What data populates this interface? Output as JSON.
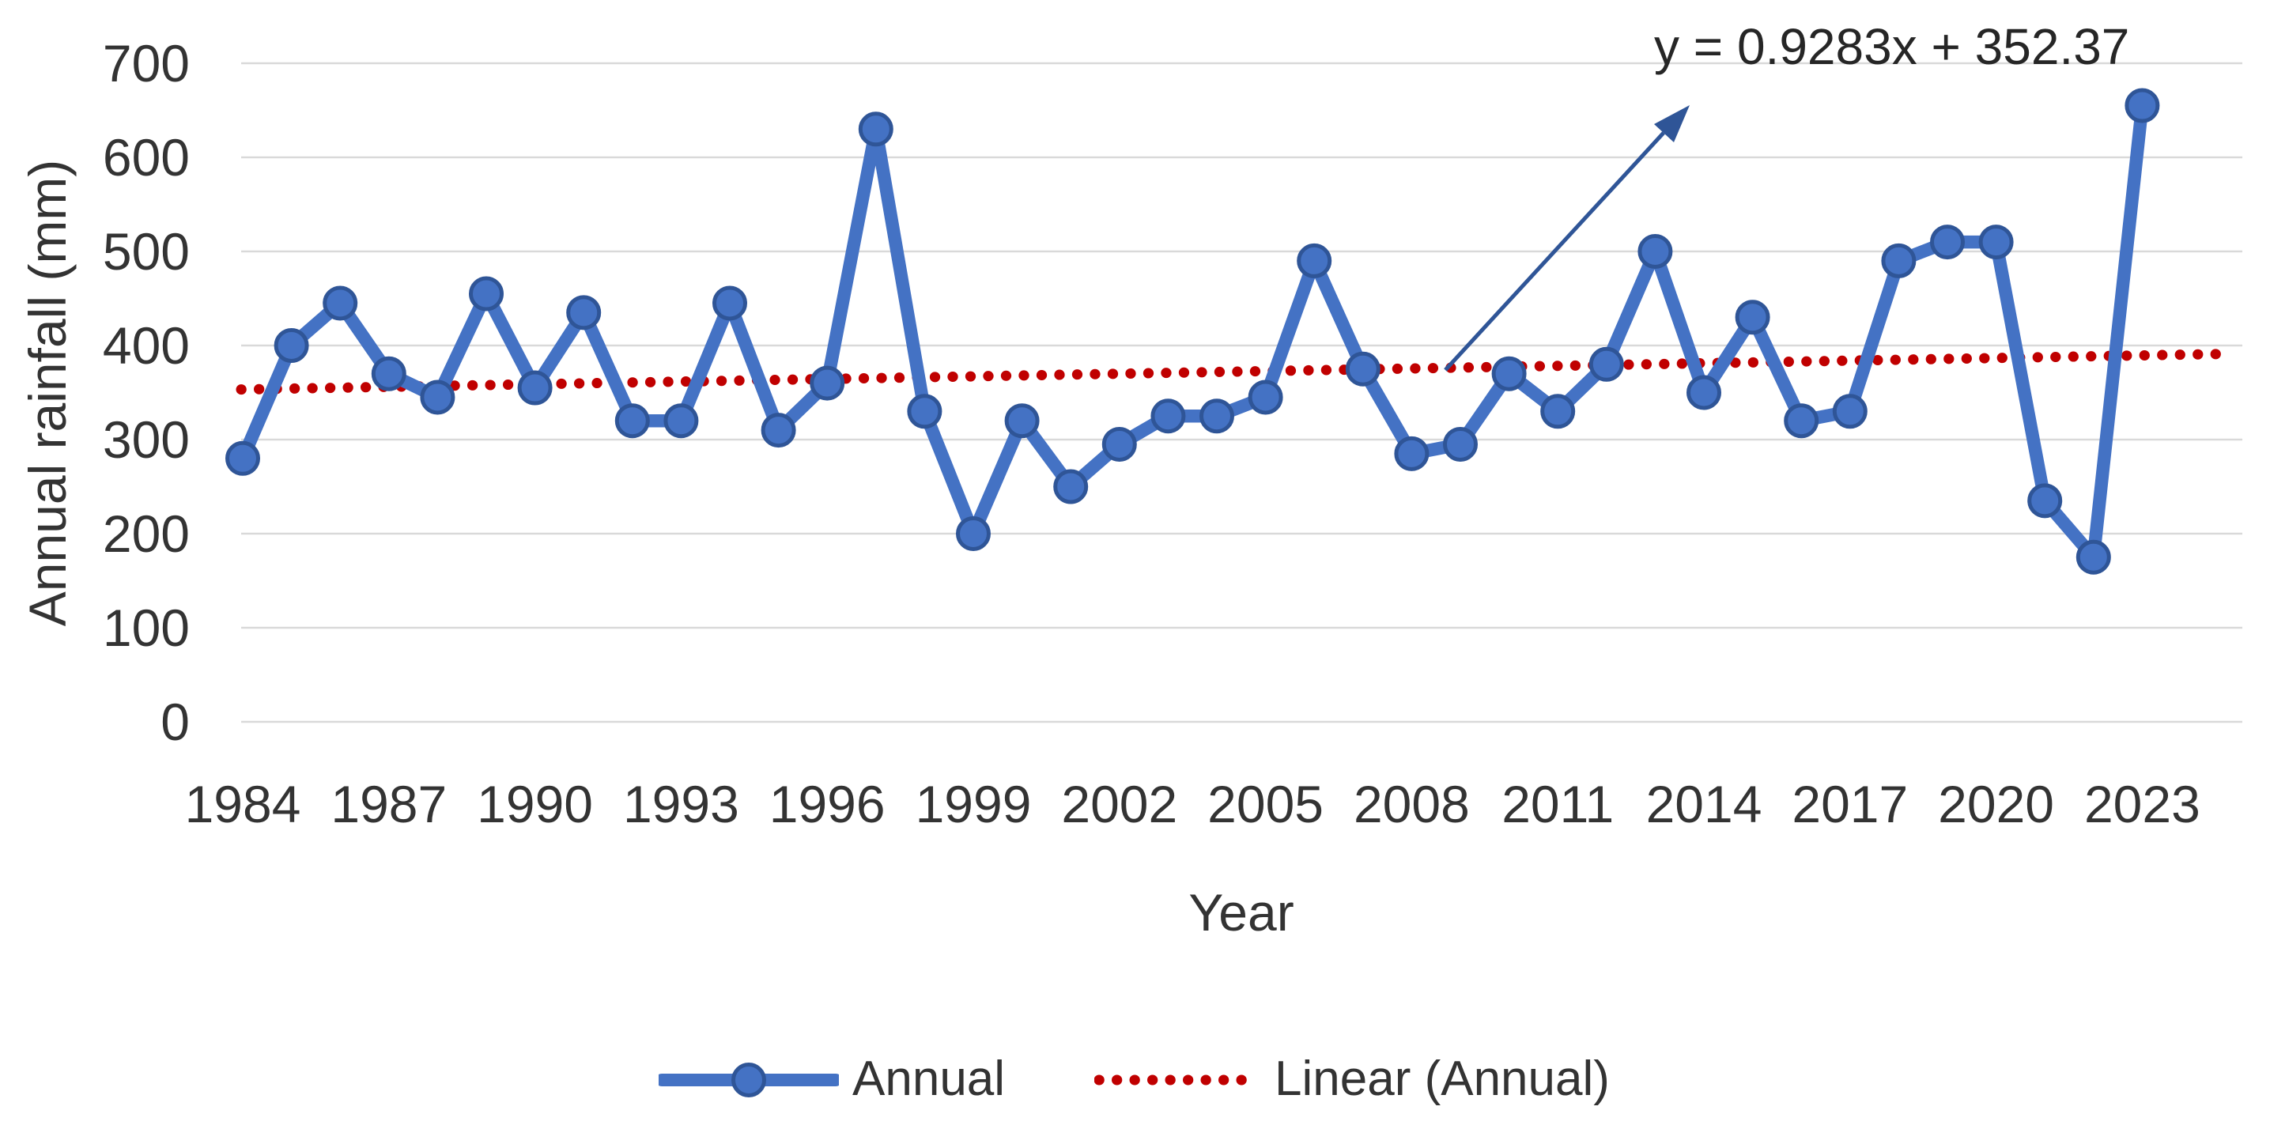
{
  "axes": {
    "y_title": "Annual rainfall (mm)",
    "x_title": "Year"
  },
  "legend": {
    "annual_label": "Annual",
    "linear_label": "Linear (Annual)"
  },
  "colors": {
    "series": "#4472C4",
    "series_border": "#2F5597",
    "trend": "#C00000",
    "arrow": "#2F5597",
    "gridline": "#D9D9D9",
    "text": "#333333"
  },
  "chart_data": {
    "type": "line",
    "title": "",
    "xlabel": "Year",
    "ylabel": "Annual rainfall (mm)",
    "ylim": [
      0,
      700
    ],
    "yticks": [
      0,
      100,
      200,
      300,
      400,
      500,
      600,
      700
    ],
    "xticks": [
      1984,
      1987,
      1990,
      1993,
      1996,
      1999,
      2002,
      2005,
      2008,
      2011,
      2014,
      2017,
      2020,
      2023
    ],
    "grid": "horizontal",
    "legend_position": "bottom-center",
    "x": [
      1984,
      1985,
      1986,
      1987,
      1988,
      1989,
      1990,
      1991,
      1992,
      1993,
      1994,
      1995,
      1996,
      1997,
      1998,
      1999,
      2000,
      2001,
      2002,
      2003,
      2004,
      2005,
      2006,
      2007,
      2008,
      2009,
      2010,
      2011,
      2012,
      2013,
      2014,
      2015,
      2016,
      2017,
      2018,
      2019,
      2020,
      2021,
      2022,
      2023
    ],
    "series": [
      {
        "name": "Annual",
        "values": [
          280,
          400,
          445,
          370,
          345,
          455,
          355,
          435,
          320,
          320,
          445,
          310,
          360,
          630,
          330,
          200,
          320,
          250,
          295,
          325,
          325,
          345,
          490,
          375,
          285,
          295,
          370,
          330,
          380,
          500,
          350,
          430,
          320,
          330,
          490,
          510,
          510,
          235,
          175,
          655
        ]
      }
    ],
    "trendline": {
      "name": "Linear (Annual)",
      "equation": "y = 0.9283x + 352.37",
      "slope": 0.9283,
      "intercept": 352.37,
      "x_index_of_first_year": 1
    }
  }
}
